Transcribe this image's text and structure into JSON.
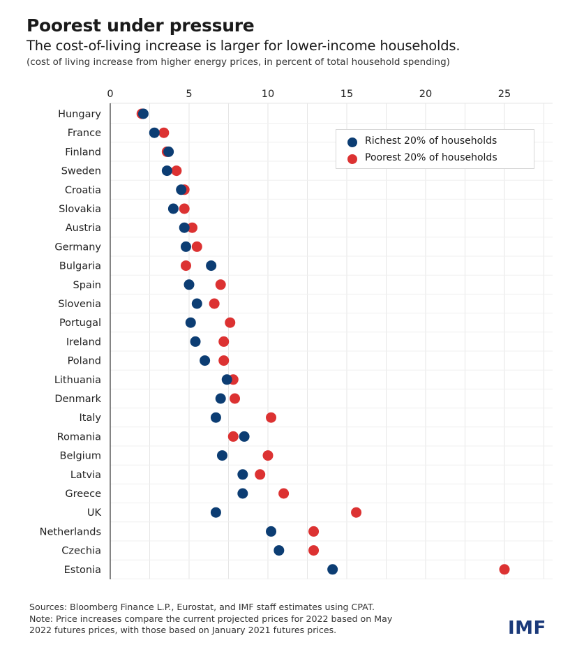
{
  "header": {
    "title": "Poorest under pressure",
    "subtitle": "The cost-of-living increase is larger for lower-income households.",
    "note": "(cost of living increase from higher energy prices, in percent of total household spending)"
  },
  "footer": {
    "sources": "Sources: Bloomberg Finance L.P., Eurostat, and IMF staff estimates using CPAT.",
    "note_line1": "Note: Price increases compare the current projected prices for 2022 based on May",
    "note_line2": "2022 futures prices, with those based on January 2021 futures prices.",
    "logo": "IMF"
  },
  "legend": {
    "richest_label": "Richest 20% of households",
    "poorest_label": "Poorest 20% of households",
    "position": "top-right"
  },
  "colors": {
    "richest": "#0c3d73",
    "poorest": "#dc3232",
    "grid": "#e6e6e6",
    "axis": "#333333"
  },
  "chart_data": {
    "type": "scatter",
    "orientation": "horizontal dot plot",
    "x_ticks": [
      0,
      5,
      10,
      15,
      20,
      25
    ],
    "xlim": [
      0,
      28
    ],
    "grid": true,
    "categories": [
      "Hungary",
      "France",
      "Finland",
      "Sweden",
      "Croatia",
      "Slovakia",
      "Austria",
      "Germany",
      "Bulgaria",
      "Spain",
      "Slovenia",
      "Portugal",
      "Ireland",
      "Poland",
      "Lithuania",
      "Denmark",
      "Italy",
      "Romania",
      "Belgium",
      "Latvia",
      "Greece",
      "UK",
      "Netherlands",
      "Czechia",
      "Estonia"
    ],
    "series": [
      {
        "name": "Richest 20% of households",
        "color": "#0c3d73",
        "values": [
          2.1,
          2.8,
          3.7,
          3.6,
          4.5,
          4.0,
          4.7,
          4.8,
          6.4,
          5.0,
          5.5,
          5.1,
          5.4,
          6.0,
          7.4,
          7.0,
          6.7,
          8.5,
          7.1,
          8.4,
          8.4,
          6.7,
          10.2,
          10.7,
          14.1
        ]
      },
      {
        "name": "Poorest 20% of households",
        "color": "#dc3232",
        "values": [
          2.0,
          3.4,
          3.6,
          4.2,
          4.7,
          4.7,
          5.2,
          5.5,
          4.8,
          7.0,
          6.6,
          7.6,
          7.2,
          7.2,
          7.8,
          7.9,
          10.2,
          7.8,
          10.0,
          9.5,
          11.0,
          15.6,
          12.9,
          12.9,
          25.0
        ]
      }
    ]
  }
}
